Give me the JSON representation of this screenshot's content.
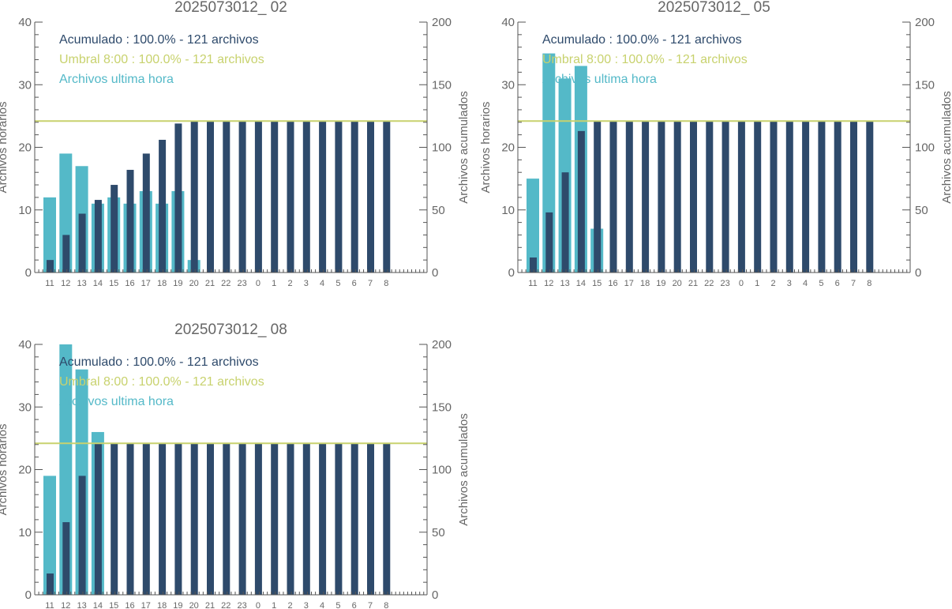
{
  "colors": {
    "hourly_bar": "#54b9c8",
    "cumulative_bar": "#2e4a6b",
    "threshold_line": "#c8d26e",
    "axis": "#555555",
    "text_gray": "#666666"
  },
  "chart_data": [
    {
      "type": "bar",
      "title": "2025073012_ 02",
      "ylabel": "Archivos horarios",
      "y2label": "Archivos acumulados",
      "ylim": [
        0,
        40
      ],
      "y2lim": [
        0,
        200
      ],
      "yticks": [
        "0",
        "10",
        "20",
        "30",
        "40"
      ],
      "y2ticks": [
        "0",
        "50",
        "100",
        "150",
        "200"
      ],
      "categories": [
        "11",
        "12",
        "13",
        "14",
        "15",
        "16",
        "17",
        "18",
        "19",
        "20",
        "21",
        "22",
        "23",
        "0",
        "1",
        "2",
        "3",
        "4",
        "5",
        "6",
        "7",
        "8"
      ],
      "legend": [
        "Acumulado : 100.0% - 121 archivos",
        "Umbral 8:00 : 100.0% - 121 archivos",
        "Archivos ultima hora"
      ],
      "threshold": 121,
      "series": [
        {
          "name": "Archivos ultima hora",
          "axis": "left",
          "values": [
            12,
            19,
            17,
            11,
            12,
            11,
            13,
            11,
            13,
            2,
            0,
            0,
            0,
            0,
            0,
            0,
            0,
            0,
            0,
            0,
            0,
            0
          ]
        },
        {
          "name": "Acumulado",
          "axis": "right",
          "values": [
            10,
            30,
            47,
            58,
            70,
            82,
            95,
            106,
            119,
            121,
            121,
            121,
            121,
            121,
            121,
            121,
            121,
            121,
            121,
            121,
            121,
            121
          ]
        }
      ]
    },
    {
      "type": "bar",
      "title": "2025073012_ 05",
      "ylabel": "Archivos horarios",
      "y2label": "Archivos acumulados",
      "ylim": [
        0,
        40
      ],
      "y2lim": [
        0,
        200
      ],
      "yticks": [
        "0",
        "10",
        "20",
        "30",
        "40"
      ],
      "y2ticks": [
        "0",
        "50",
        "100",
        "150",
        "200"
      ],
      "categories": [
        "11",
        "12",
        "13",
        "14",
        "15",
        "16",
        "17",
        "18",
        "19",
        "20",
        "21",
        "22",
        "23",
        "0",
        "1",
        "2",
        "3",
        "4",
        "5",
        "6",
        "7",
        "8"
      ],
      "legend": [
        "Acumulado : 100.0% - 121 archivos",
        "Umbral 8:00 : 100.0% - 121 archivos",
        "Archivos ultima hora"
      ],
      "threshold": 121,
      "series": [
        {
          "name": "Archivos ultima hora",
          "axis": "left",
          "values": [
            15,
            35,
            31,
            33,
            7,
            0,
            0,
            0,
            0,
            0,
            0,
            0,
            0,
            0,
            0,
            0,
            0,
            0,
            0,
            0,
            0,
            0
          ]
        },
        {
          "name": "Acumulado",
          "axis": "right",
          "values": [
            12,
            48,
            80,
            113,
            121,
            121,
            121,
            121,
            121,
            121,
            121,
            121,
            121,
            121,
            121,
            121,
            121,
            121,
            121,
            121,
            121,
            121
          ]
        }
      ]
    },
    {
      "type": "bar",
      "title": "2025073012_ 08",
      "ylabel": "Archivos horarios",
      "y2label": "Archivos acumulados",
      "ylim": [
        0,
        40
      ],
      "y2lim": [
        0,
        200
      ],
      "yticks": [
        "0",
        "10",
        "20",
        "30",
        "40"
      ],
      "y2ticks": [
        "0",
        "50",
        "100",
        "150",
        "200"
      ],
      "categories": [
        "11",
        "12",
        "13",
        "14",
        "15",
        "16",
        "17",
        "18",
        "19",
        "20",
        "21",
        "22",
        "23",
        "0",
        "1",
        "2",
        "3",
        "4",
        "5",
        "6",
        "7",
        "8"
      ],
      "legend": [
        "Acumulado : 100.0% - 121 archivos",
        "Umbral 8:00 : 100.0% - 121 archivos",
        "Archivos ultima hora"
      ],
      "threshold": 121,
      "series": [
        {
          "name": "Archivos ultima hora",
          "axis": "left",
          "values": [
            19,
            40,
            36,
            26,
            0,
            0,
            0,
            0,
            0,
            0,
            0,
            0,
            0,
            0,
            0,
            0,
            0,
            0,
            0,
            0,
            0,
            0
          ]
        },
        {
          "name": "Acumulado",
          "axis": "right",
          "values": [
            17,
            58,
            95,
            121,
            121,
            121,
            121,
            121,
            121,
            121,
            121,
            121,
            121,
            121,
            121,
            121,
            121,
            121,
            121,
            121,
            121,
            121
          ]
        }
      ]
    }
  ]
}
